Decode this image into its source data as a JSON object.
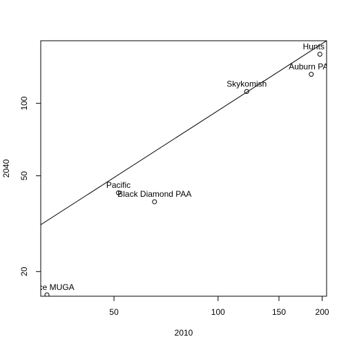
{
  "chart_data": {
    "type": "scatter",
    "title": "",
    "xlabel": "2010",
    "ylabel": "2040",
    "x_scale": "log",
    "y_scale": "log",
    "xlim": [
      30.7,
      206
    ],
    "ylim": [
      15.8,
      182
    ],
    "x_ticks": [
      50,
      100,
      150,
      200
    ],
    "y_ticks": [
      20,
      50,
      100
    ],
    "grid": false,
    "legend": "none",
    "points": [
      {
        "label": "Hunts Po",
        "x": 197,
        "y": 160
      },
      {
        "label": "Auburn PAA",
        "x": 186,
        "y": 132
      },
      {
        "label": "Skykomish",
        "x": 121,
        "y": 112
      },
      {
        "label": "Pacific",
        "x": 51.5,
        "y": 42.5
      },
      {
        "label": "Black Diamond PAA",
        "x": 65.5,
        "y": 39
      },
      {
        "label": "Terrace MUGA",
        "x": 32,
        "y": 16
      }
    ],
    "trend_line": {
      "x": [
        30.7,
        206
      ],
      "y": [
        31.3,
        182
      ]
    }
  }
}
